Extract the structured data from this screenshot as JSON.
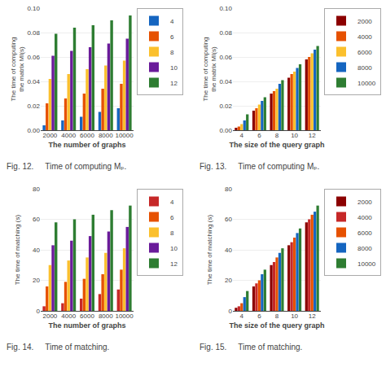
{
  "chart_data": [
    {
      "type": "bar",
      "xlabel": "The number of graphs",
      "ylabel": "The time of computing\nthe matrix MI(s)",
      "categories": [
        2000,
        4000,
        6000,
        8000,
        10000
      ],
      "series": [
        {
          "name": "4",
          "color": "#1565c0",
          "values": [
            0.004,
            0.008,
            0.011,
            0.015,
            0.018
          ]
        },
        {
          "name": "6",
          "color": "#e65100",
          "values": [
            0.022,
            0.026,
            0.03,
            0.034,
            0.038
          ]
        },
        {
          "name": "8",
          "color": "#fbc02d",
          "values": [
            0.042,
            0.046,
            0.05,
            0.053,
            0.057
          ]
        },
        {
          "name": "10",
          "color": "#6a1b9a",
          "values": [
            0.061,
            0.065,
            0.068,
            0.071,
            0.075
          ]
        },
        {
          "name": "12",
          "color": "#2e7d32",
          "values": [
            0.079,
            0.084,
            0.086,
            0.09,
            0.094
          ]
        }
      ],
      "ylim": [
        0,
        0.1
      ],
      "yticks": [
        {
          "value": 0,
          "label": "0.00"
        },
        0.02,
        0.04,
        0.06,
        0.08,
        {
          "value": 0.1,
          "label": "0.10"
        }
      ],
      "grid": true,
      "legend": "right",
      "annotations": [
        "Fig. 12.     Time of computing Mₚ."
      ]
    },
    {
      "type": "bar",
      "xlabel": "The size of the query graph",
      "ylabel": "The time of computing\nthe matrix MI(s)",
      "categories": [
        4,
        6,
        8,
        10,
        12
      ],
      "series": [
        {
          "name": "2000",
          "color": "#8b0000",
          "values": [
            0.002,
            0.016,
            0.03,
            0.043,
            0.058
          ]
        },
        {
          "name": "4000",
          "color": "#e65100",
          "values": [
            0.003,
            0.018,
            0.032,
            0.046,
            0.06
          ]
        },
        {
          "name": "6000",
          "color": "#fbc02d",
          "values": [
            0.005,
            0.021,
            0.034,
            0.048,
            0.063
          ]
        },
        {
          "name": "8000",
          "color": "#1565c0",
          "values": [
            0.008,
            0.024,
            0.038,
            0.051,
            0.066
          ]
        },
        {
          "name": "10000",
          "color": "#2e7d32",
          "values": [
            0.013,
            0.027,
            0.041,
            0.054,
            0.069
          ]
        }
      ],
      "ylim": [
        0,
        0.1
      ],
      "yticks": [
        {
          "value": 0,
          "label": "0.00"
        },
        0.02,
        0.04,
        0.06,
        0.08,
        {
          "value": 0.1,
          "label": "0.10"
        }
      ],
      "grid": true,
      "legend": "right",
      "annotations": [
        "Fig. 13.     Time of computing Mₚ."
      ]
    },
    {
      "type": "bar",
      "xlabel": "The number of graphs",
      "ylabel": "The time of matching (s)",
      "categories": [
        2000,
        4000,
        6000,
        8000,
        10000
      ],
      "series": [
        {
          "name": "4",
          "color": "#c62828",
          "values": [
            3,
            5,
            8,
            11,
            14
          ]
        },
        {
          "name": "6",
          "color": "#e65100",
          "values": [
            16,
            19,
            21,
            24,
            27
          ]
        },
        {
          "name": "8",
          "color": "#fbc02d",
          "values": [
            30,
            33,
            35,
            38,
            41
          ]
        },
        {
          "name": "10",
          "color": "#6a1b9a",
          "values": [
            43,
            46,
            49,
            52,
            55
          ]
        },
        {
          "name": "12",
          "color": "#2e7d32",
          "values": [
            58,
            60,
            63,
            66,
            69
          ]
        }
      ],
      "ylim": [
        0,
        80
      ],
      "yticks": [
        0,
        20,
        40,
        60,
        80
      ],
      "grid": true,
      "legend": "right",
      "annotations": [
        "Fig. 14.     Time of matching."
      ]
    },
    {
      "type": "bar",
      "xlabel": "The size of the query graph",
      "ylabel": "The time of matching (s)",
      "categories": [
        4,
        6,
        8,
        10,
        12
      ],
      "series": [
        {
          "name": "2000",
          "color": "#8b0000",
          "values": [
            2,
            16,
            30,
            43,
            58
          ]
        },
        {
          "name": "4000",
          "color": "#c62828",
          "values": [
            3,
            18,
            32,
            45,
            60
          ]
        },
        {
          "name": "6000",
          "color": "#e65100",
          "values": [
            5,
            20,
            35,
            48,
            63
          ]
        },
        {
          "name": "8000",
          "color": "#1565c0",
          "values": [
            9,
            24,
            38,
            51,
            65
          ]
        },
        {
          "name": "10000",
          "color": "#2e7d32",
          "values": [
            13,
            27,
            41,
            54,
            69
          ]
        }
      ],
      "ylim": [
        0,
        80
      ],
      "yticks": [
        0,
        20,
        40,
        60,
        80
      ],
      "grid": true,
      "legend": "right",
      "annotations": [
        "Fig. 15.     Time of matching."
      ]
    }
  ]
}
